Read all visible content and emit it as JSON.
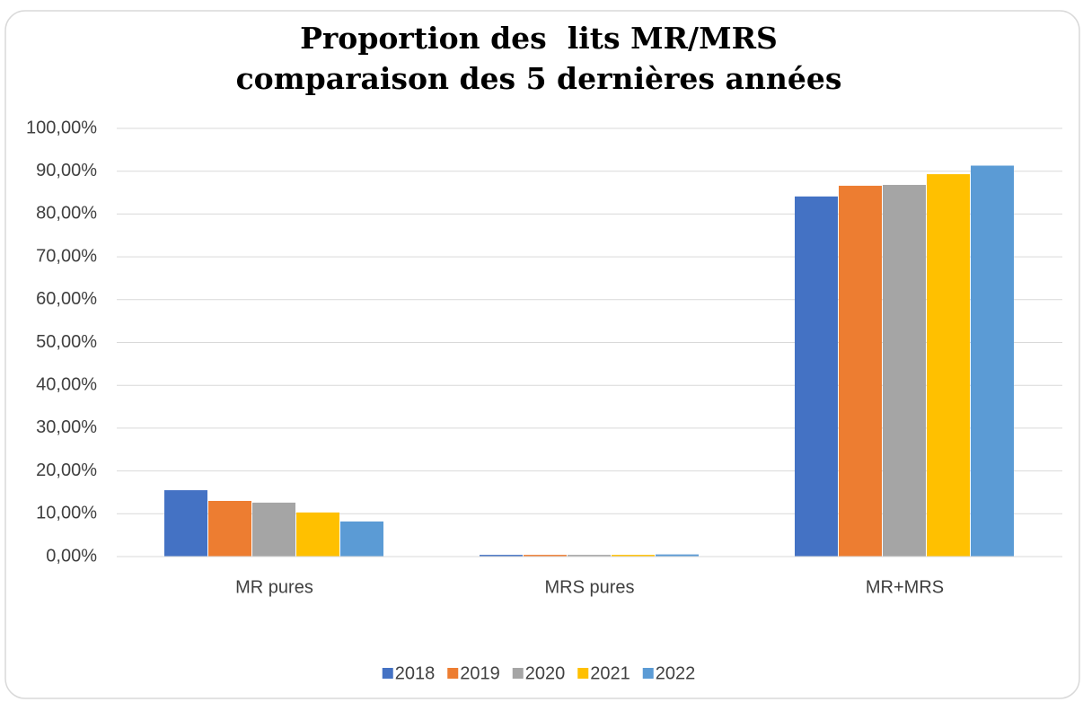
{
  "chart_data": {
    "type": "bar",
    "title": [
      "Proportion des  lits MR/MRS",
      "comparaison des 5 dernières années"
    ],
    "categories": [
      "MR pures",
      "MRS pures",
      "MR+MRS"
    ],
    "series": [
      {
        "name": "2018",
        "color": "#4472c4",
        "values": [
          15.5,
          0.4,
          84.1
        ]
      },
      {
        "name": "2019",
        "color": "#ed7d31",
        "values": [
          13.0,
          0.4,
          86.6
        ]
      },
      {
        "name": "2020",
        "color": "#a5a5a5",
        "values": [
          12.6,
          0.4,
          86.8
        ]
      },
      {
        "name": "2021",
        "color": "#ffc000",
        "values": [
          10.3,
          0.4,
          89.3
        ]
      },
      {
        "name": "2022",
        "color": "#5b9bd5",
        "values": [
          8.2,
          0.5,
          91.3
        ]
      }
    ],
    "ylim": [
      0,
      100
    ],
    "yticks": [
      {
        "value": 0,
        "label": "0,00%"
      },
      {
        "value": 10,
        "label": "10,00%"
      },
      {
        "value": 20,
        "label": "20,00%"
      },
      {
        "value": 30,
        "label": "30,00%"
      },
      {
        "value": 40,
        "label": "40,00%"
      },
      {
        "value": 50,
        "label": "50,00%"
      },
      {
        "value": 60,
        "label": "60,00%"
      },
      {
        "value": 70,
        "label": "70,00%"
      },
      {
        "value": 80,
        "label": "80,00%"
      },
      {
        "value": 90,
        "label": "90,00%"
      },
      {
        "value": 100,
        "label": "100,00%"
      }
    ],
    "grid": true,
    "legend": "bottom"
  }
}
